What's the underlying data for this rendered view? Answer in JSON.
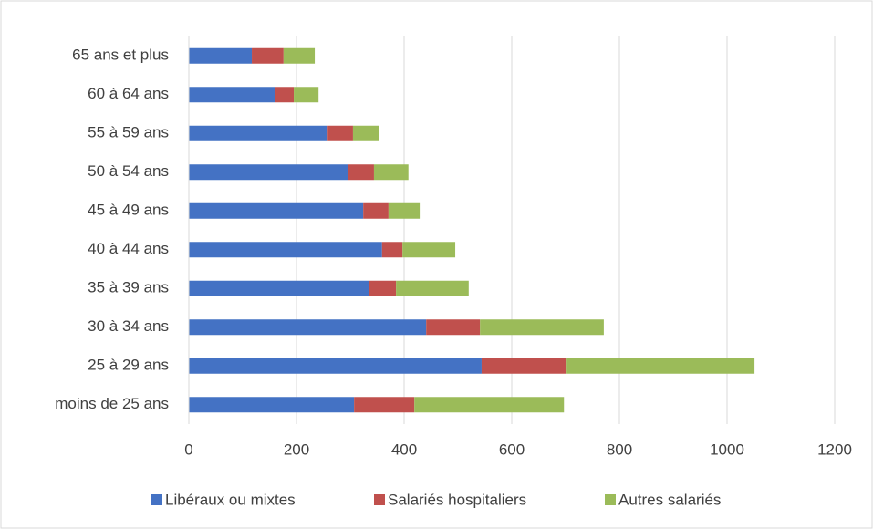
{
  "chart_data": {
    "type": "bar",
    "orientation": "horizontal",
    "stacked": true,
    "categories": [
      "moins de 25 ans",
      "25 à 29 ans",
      "30 à 34 ans",
      "35 à 39 ans",
      "40 à 44 ans",
      "45 à 49 ans",
      "50 à 54 ans",
      "55 à 59 ans",
      "60 à 64 ans",
      "65 ans et plus"
    ],
    "series": [
      {
        "name": "Libéraux ou mixtes",
        "color": "#4472c4",
        "values": [
          307,
          544,
          441,
          334,
          359,
          324,
          295,
          258,
          161,
          117
        ]
      },
      {
        "name": "Salariés hospitaliers",
        "color": "#c0504d",
        "values": [
          112,
          158,
          100,
          51,
          38,
          47,
          49,
          47,
          34,
          59
        ]
      },
      {
        "name": "Autres salariés",
        "color": "#9bbb59",
        "values": [
          278,
          349,
          230,
          135,
          98,
          58,
          64,
          49,
          46,
          58
        ]
      }
    ],
    "xlim": [
      0,
      1200
    ],
    "xticks": [
      0,
      200,
      400,
      600,
      800,
      1000,
      1200
    ],
    "grid": true,
    "legend": "bottom"
  }
}
